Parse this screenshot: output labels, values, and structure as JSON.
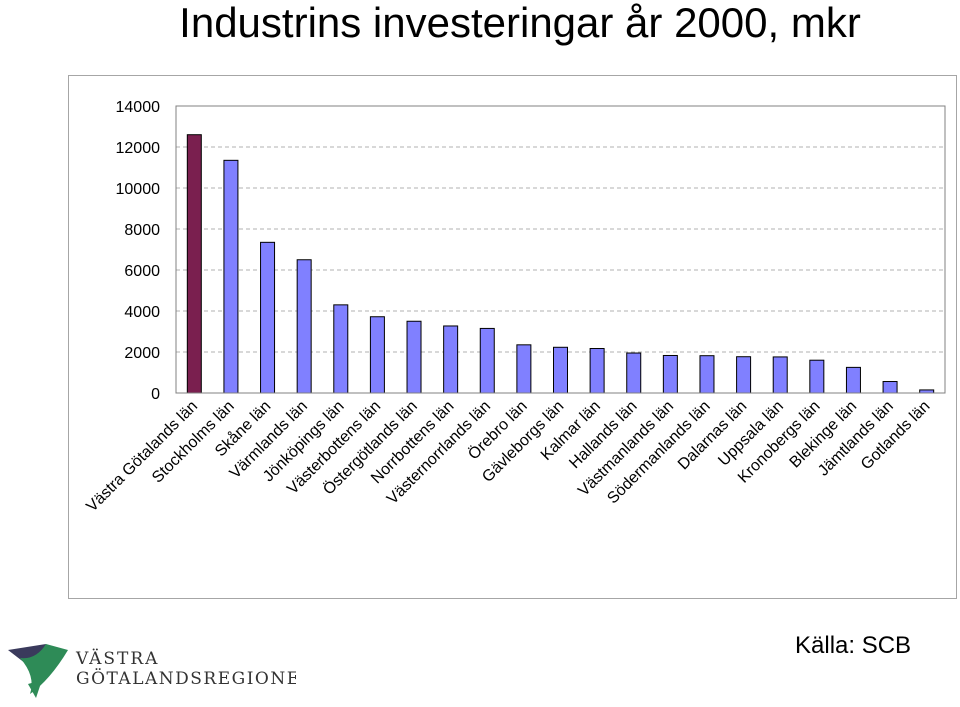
{
  "title": "Industrins investeringar år 2000, mkr",
  "source": "Källa: SCB",
  "logo": {
    "line1": "VÄSTRA",
    "line2": "GÖTALANDSREGIONEN",
    "mark_colors": [
      "#3a3a5c",
      "#2e8b57"
    ]
  },
  "colors": {
    "highlight_bar": "#7a1f4f",
    "bar": "#8080ff",
    "gridline": "#b0b0b0"
  },
  "chart_data": {
    "type": "bar",
    "title": "Industrins investeringar år 2000, mkr",
    "xlabel": "",
    "ylabel": "",
    "ylim": [
      0,
      14000
    ],
    "yticks": [
      0,
      2000,
      4000,
      6000,
      8000,
      10000,
      12000,
      14000
    ],
    "grid": true,
    "legend": "none",
    "categories": [
      "Västra Götalands län",
      "Stockholms län",
      "Skåne län",
      "Värmlands län",
      "Jönköpings län",
      "Västerbottens län",
      "Östergötlands län",
      "Norrbottens län",
      "Västernorrlands län",
      "Örebro län",
      "Gävleborgs län",
      "Kalmar län",
      "Hallands län",
      "Västmanlands län",
      "Södermanlands län",
      "Dalarnas län",
      "Uppsala län",
      "Kronobergs län",
      "Blekinge län",
      "Jämtlands län",
      "Gotlands län"
    ],
    "values": [
      12600,
      11350,
      7350,
      6500,
      4300,
      3720,
      3500,
      3270,
      3150,
      2350,
      2230,
      2170,
      1950,
      1830,
      1820,
      1770,
      1760,
      1600,
      1250,
      560,
      150
    ],
    "highlight_index": 0
  }
}
